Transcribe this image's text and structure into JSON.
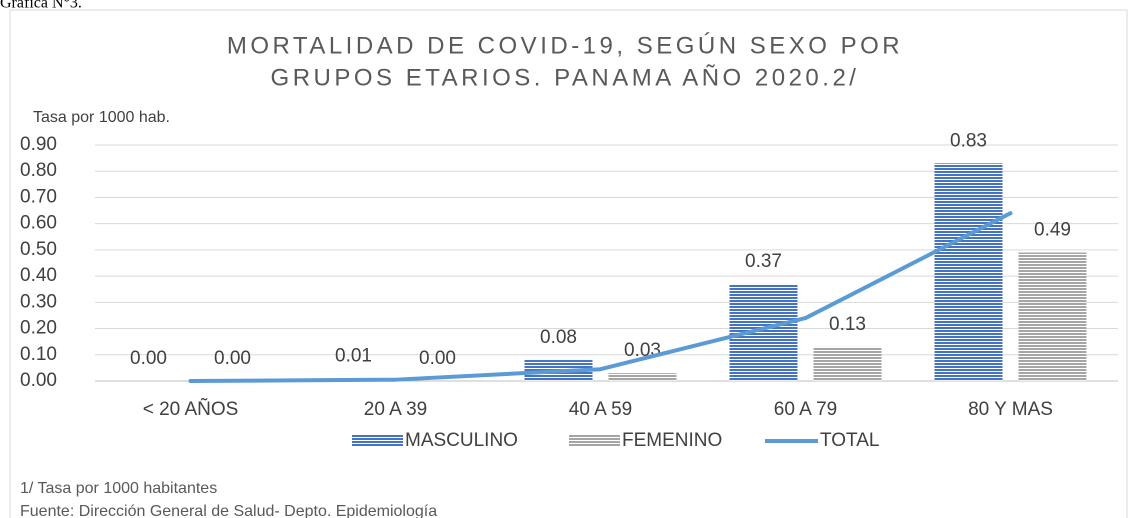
{
  "figure_label": "Gráfica N°3.",
  "chart_data": {
    "type": "bar_line",
    "title": [
      "MORTALIDAD DE COVID-19, SEGÚN SEXO POR",
      "GRUPOS ETARIOS. PANAMA AÑO 2020.2/"
    ],
    "y_label": "Tasa por 1000 hab.",
    "categories": [
      "< 20 AÑOS",
      "20 A 39",
      "40 A 59",
      "60 A 79",
      "80 Y MAS"
    ],
    "series": [
      {
        "name": "MASCULINO",
        "type": "bar",
        "color": "#4472c4",
        "values": [
          0,
          0.01,
          0.08,
          0.37,
          0.83
        ],
        "value_labels": [
          "0.00",
          "0.01",
          "0.08",
          "0.37",
          "0.83"
        ]
      },
      {
        "name": "FEMENINO",
        "type": "bar",
        "color": "#a5a5a5",
        "values": [
          0,
          0,
          0.03,
          0.13,
          0.49
        ],
        "value_labels": [
          "0.00",
          "0.00",
          "0.03",
          "0.13",
          "0.49"
        ]
      },
      {
        "name": "TOTAL",
        "type": "line",
        "color": "#5b9bd5",
        "values": [
          0,
          0.005,
          0.045,
          0.24,
          0.64
        ]
      }
    ],
    "ylim": [
      0,
      0.9
    ],
    "yticks": [
      {
        "value": 0,
        "label": "0.00"
      },
      {
        "value": 0.1,
        "label": "0.10"
      },
      {
        "value": 0.2,
        "label": "0.20"
      },
      {
        "value": 0.3,
        "label": "0.30"
      },
      {
        "value": 0.4,
        "label": "0.40"
      },
      {
        "value": 0.5,
        "label": "0.50"
      },
      {
        "value": 0.6,
        "label": "0.60"
      },
      {
        "value": 0.7,
        "label": "0.70"
      },
      {
        "value": 0.8,
        "label": "0.80"
      },
      {
        "value": 0.9,
        "label": "0.90"
      }
    ],
    "grid": true,
    "legend": "bottom",
    "footnotes": [
      "1/ Tasa por 1000 habitantes",
      "Fuente: Dirección General de Salud- Depto. Epidemiología"
    ]
  }
}
